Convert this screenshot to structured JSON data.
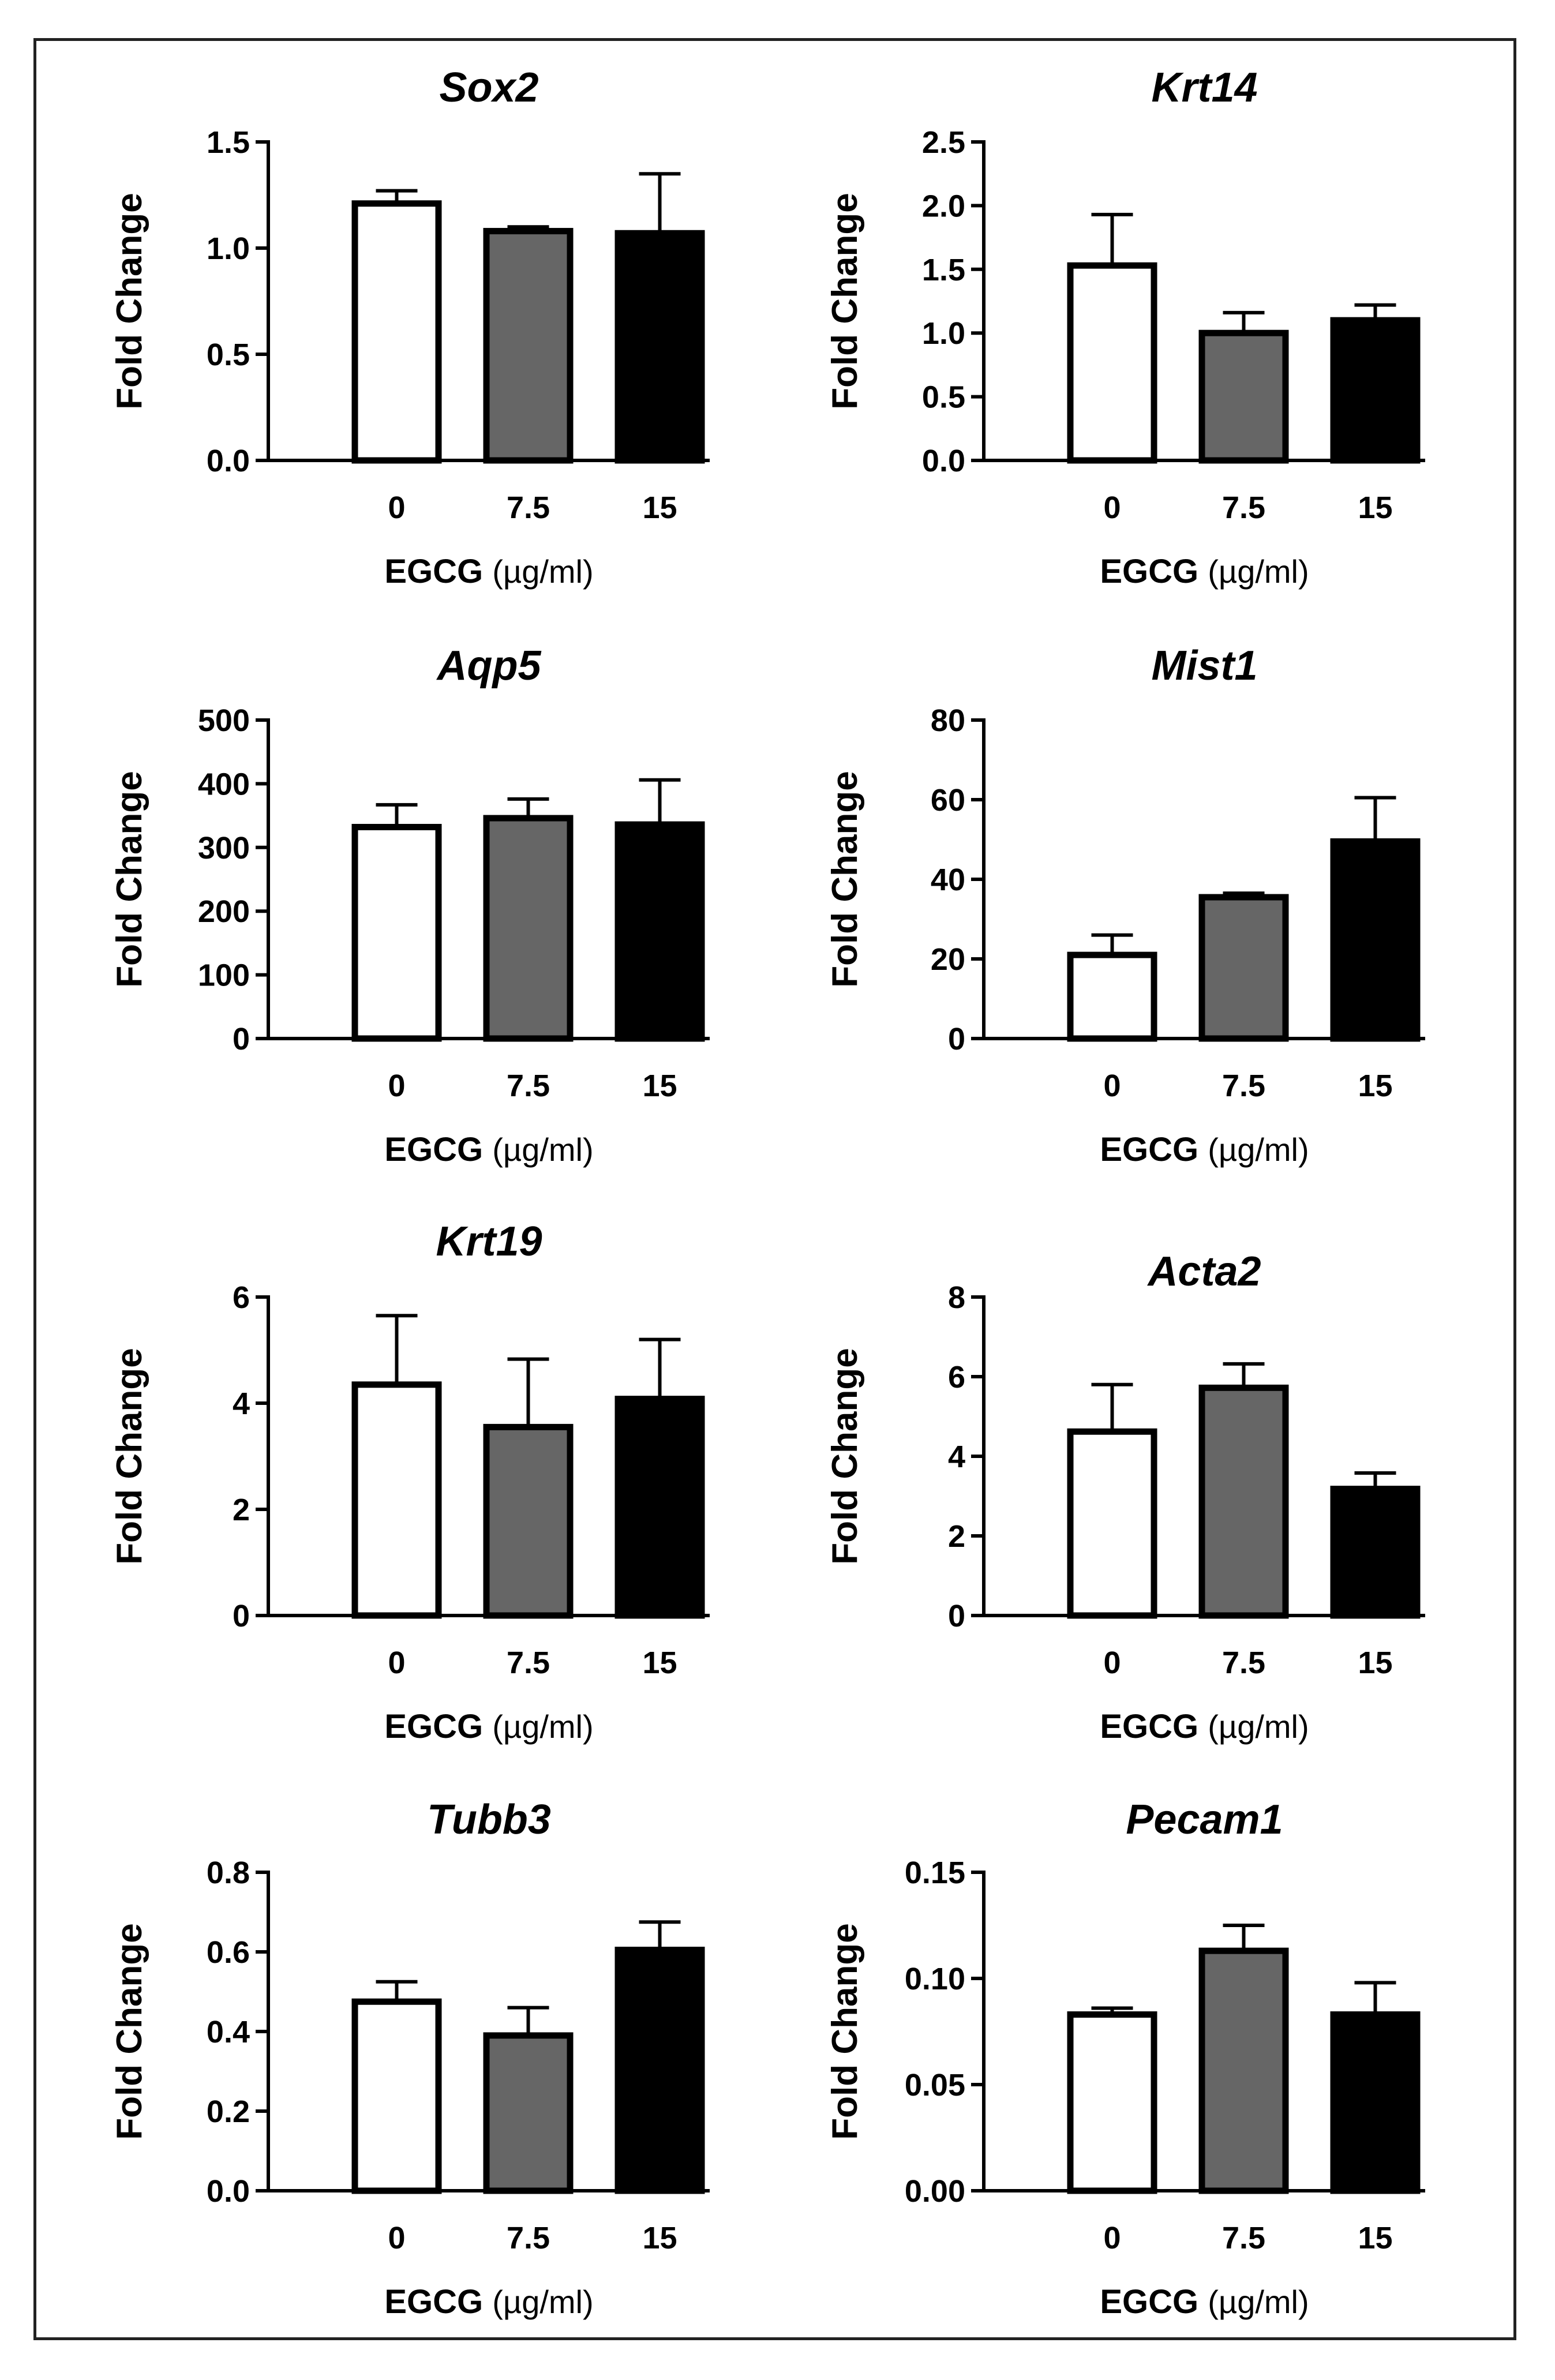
{
  "chart_data": [
    {
      "type": "bar",
      "title": "Sox2",
      "ylabel": "Fold Change",
      "xlabel_bold": "EGCG",
      "xlabel_unit": "(µg/ml)",
      "categories": [
        "0",
        "7.5",
        "15"
      ],
      "values": [
        1.21,
        1.08,
        1.07
      ],
      "errors": [
        0.06,
        0.02,
        0.28
      ],
      "ylim": [
        0,
        1.5
      ],
      "yticks": [
        "0.0",
        "0.5",
        "1.0",
        "1.5"
      ],
      "bar_colors": [
        "#ffffff",
        "#666666",
        "#000000"
      ]
    },
    {
      "type": "bar",
      "title": "Krt14",
      "ylabel": "Fold Change",
      "xlabel_bold": "EGCG",
      "xlabel_unit": "(µg/ml)",
      "categories": [
        "0",
        "7.5",
        "15"
      ],
      "values": [
        1.53,
        1.0,
        1.1
      ],
      "errors": [
        0.4,
        0.16,
        0.12
      ],
      "ylim": [
        0,
        2.5
      ],
      "yticks": [
        "0.0",
        "0.5",
        "1.0",
        "1.5",
        "2.0",
        "2.5"
      ],
      "bar_colors": [
        "#ffffff",
        "#666666",
        "#000000"
      ]
    },
    {
      "type": "bar",
      "title": "Aqp5",
      "ylabel": "Fold Change",
      "xlabel_bold": "EGCG",
      "xlabel_unit": "(µg/ml)",
      "categories": [
        "0",
        "7.5",
        "15"
      ],
      "values": [
        332,
        346,
        336
      ],
      "errors": [
        35,
        30,
        70
      ],
      "ylim": [
        0,
        500
      ],
      "yticks": [
        "0",
        "100",
        "200",
        "300",
        "400",
        "500"
      ],
      "bar_colors": [
        "#ffffff",
        "#666666",
        "#000000"
      ]
    },
    {
      "type": "bar",
      "title": "Mist1",
      "ylabel": "Fold Change",
      "xlabel_bold": "EGCG",
      "xlabel_unit": "(µg/ml)",
      "categories": [
        "0",
        "7.5",
        "15"
      ],
      "values": [
        21,
        35.5,
        49.5
      ],
      "errors": [
        5,
        1,
        11
      ],
      "ylim": [
        0,
        80
      ],
      "yticks": [
        "0",
        "20",
        "40",
        "60",
        "80"
      ],
      "bar_colors": [
        "#ffffff",
        "#666666",
        "#000000"
      ]
    },
    {
      "type": "bar",
      "title": "Krt19",
      "ylabel": "Fold Change",
      "xlabel_bold": "EGCG",
      "xlabel_unit": "(µg/ml)",
      "categories": [
        "0",
        "7.5",
        "15"
      ],
      "values": [
        4.35,
        3.55,
        4.08
      ],
      "errors": [
        1.3,
        1.28,
        1.12
      ],
      "ylim": [
        0,
        6
      ],
      "yticks": [
        "0",
        "2",
        "4",
        "6"
      ],
      "bar_colors": [
        "#ffffff",
        "#666666",
        "#000000"
      ]
    },
    {
      "type": "bar",
      "title": "Acta2",
      "ylabel": "Fold Change",
      "xlabel_bold": "EGCG",
      "xlabel_unit": "(µg/ml)",
      "categories": [
        "0",
        "7.5",
        "15"
      ],
      "values": [
        4.62,
        5.72,
        3.18
      ],
      "errors": [
        1.18,
        0.6,
        0.4
      ],
      "ylim": [
        0,
        8
      ],
      "yticks": [
        "0",
        "2",
        "4",
        "6",
        "8"
      ],
      "bar_colors": [
        "#ffffff",
        "#666666",
        "#000000"
      ]
    },
    {
      "type": "bar",
      "title": "Tubb3",
      "ylabel": "Fold Change",
      "xlabel_bold": "EGCG",
      "xlabel_unit": "(µg/ml)",
      "categories": [
        "0",
        "7.5",
        "15"
      ],
      "values": [
        0.475,
        0.39,
        0.605
      ],
      "errors": [
        0.05,
        0.07,
        0.07
      ],
      "ylim": [
        0,
        0.8
      ],
      "yticks": [
        "0.0",
        "0.2",
        "0.4",
        "0.6",
        "0.8"
      ],
      "bar_colors": [
        "#ffffff",
        "#666666",
        "#000000"
      ]
    },
    {
      "type": "bar",
      "title": "Pecam1",
      "ylabel": "Fold Change",
      "xlabel_bold": "EGCG",
      "xlabel_unit": "(µg/ml)",
      "categories": [
        "0",
        "7.5",
        "15"
      ],
      "values": [
        0.083,
        0.113,
        0.083
      ],
      "errors": [
        0.003,
        0.012,
        0.015
      ],
      "ylim": [
        0,
        0.15
      ],
      "yticks": [
        "0.00",
        "0.05",
        "0.10",
        "0.15"
      ],
      "bar_colors": [
        "#ffffff",
        "#666666",
        "#000000"
      ]
    }
  ]
}
